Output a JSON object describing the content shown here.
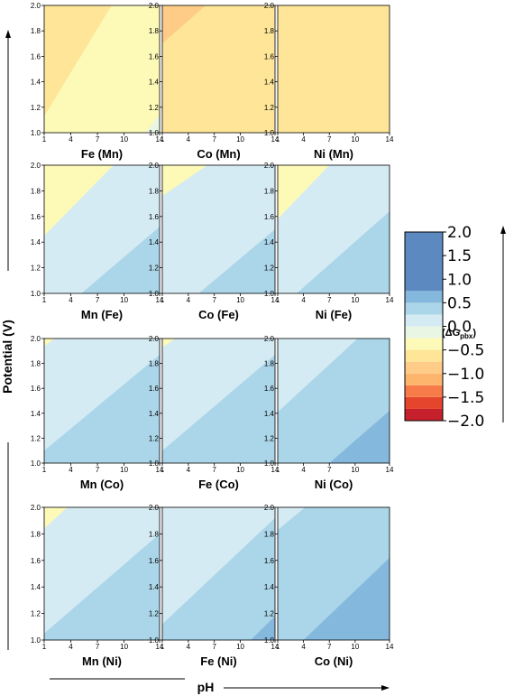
{
  "figure": {
    "ylabel": "Potential (V)",
    "xlabel": "pH",
    "colorbar": {
      "label": "(ΔG",
      "label_sub": "pbx",
      "label_end": ")",
      "ticks": [
        "2.0",
        "1.5",
        "1.0",
        "0.5",
        "0.0",
        "−0.5",
        "−1.0",
        "−1.5",
        "−2.0"
      ],
      "levels": [
        -2.0,
        -1.75,
        -1.5,
        -1.25,
        -1.0,
        -0.75,
        -0.5,
        -0.25,
        0.0,
        0.25,
        0.5,
        0.75,
        2.0
      ],
      "colors": [
        "#c6202c",
        "#e5452d",
        "#f77b48",
        "#fdb46d",
        "#fecc86",
        "#fee598",
        "#fdf9b7",
        "#eaf6e4",
        "#d5ebf4",
        "#abd5e8",
        "#84b8dc",
        "#5d89c1",
        "#303f98"
      ]
    }
  },
  "chart_data": {
    "type": "heatmap",
    "description_axes": {
      "x": "pH",
      "y": "Potential (V)"
    },
    "x_ticks": [
      "1",
      "4",
      "7",
      "10",
      "14"
    ],
    "y_ticks": [
      "1.0",
      "1.2",
      "1.4",
      "1.6",
      "1.8",
      "2.0"
    ],
    "xlim": [
      1,
      14
    ],
    "ylim": [
      1.0,
      2.0
    ],
    "panels": [
      {
        "title": "Fe (Mn)",
        "boundaries": [
          {
            "x1": 1,
            "y1": 1.9,
            "x2": 3.5,
            "y2": 2.0,
            "value": -1.0
          },
          {
            "x1": 1,
            "y1": 1.13,
            "x2": 8.6,
            "y2": 2.0,
            "value": -0.75
          },
          {
            "x1": 12.4,
            "y1": 1.0,
            "x2": 14,
            "y2": 1.14,
            "value": -0.25
          }
        ],
        "base_value": -0.375
      },
      {
        "title": "Co (Mn)",
        "boundaries": [
          {
            "x1": 1,
            "y1": 1.7,
            "x2": 6.0,
            "y2": 2.0,
            "value": -1.0
          },
          {
            "x1": 4.9,
            "y1": 1.0,
            "x2": 14,
            "y2": 1.58,
            "value": -0.75
          }
        ],
        "base_value": -0.625
      },
      {
        "title": "Ni (Mn)",
        "boundaries": [
          {
            "x1": 1,
            "y1": 1.7,
            "x2": 6.0,
            "y2": 2.0,
            "value": -1.0
          },
          {
            "x1": 1,
            "y1": 1.0,
            "x2": 14,
            "y2": 1.9,
            "value": -0.75
          }
        ],
        "base_value": -0.625
      },
      {
        "title": "Mn (Fe)",
        "boundaries": [
          {
            "x1": 1,
            "y1": 1.82,
            "x2": 3.0,
            "y2": 2.0,
            "value": -0.75
          },
          {
            "x1": 1,
            "y1": 1.45,
            "x2": 8.8,
            "y2": 2.0,
            "value": -0.375
          },
          {
            "x1": 5.2,
            "y1": 1.0,
            "x2": 14,
            "y2": 1.52,
            "value": 0.375
          }
        ],
        "base_value": 0.125
      },
      {
        "title": "Co (Fe)",
        "boundaries": [
          {
            "x1": 1,
            "y1": 1.76,
            "x2": 6.2,
            "y2": 2.0,
            "value": -0.375
          },
          {
            "x1": 5.2,
            "y1": 1.0,
            "x2": 14,
            "y2": 1.5,
            "value": 0.375
          }
        ],
        "base_value": 0.125
      },
      {
        "title": "Ni (Fe)",
        "boundaries": [
          {
            "x1": 1,
            "y1": 1.58,
            "x2": 7.0,
            "y2": 2.0,
            "value": -0.375
          },
          {
            "x1": 3.2,
            "y1": 1.0,
            "x2": 14,
            "y2": 1.64,
            "value": 0.375
          }
        ],
        "base_value": 0.125
      },
      {
        "title": "Mn (Co)",
        "boundaries": [
          {
            "x1": 1,
            "y1": 1.94,
            "x2": 2.2,
            "y2": 2.0,
            "value": -0.375
          },
          {
            "x1": 1,
            "y1": 1.1,
            "x2": 14,
            "y2": 1.87,
            "value": 0.375
          }
        ],
        "base_value": 0.125
      },
      {
        "title": "Fe (Co)",
        "boundaries": [
          {
            "x1": 1,
            "y1": 1.93,
            "x2": 2.5,
            "y2": 2.0,
            "value": -0.375
          },
          {
            "x1": 1,
            "y1": 1.1,
            "x2": 14,
            "y2": 1.87,
            "value": 0.375
          }
        ],
        "base_value": 0.125
      },
      {
        "title": "Ni (Co)",
        "boundaries": [
          {
            "x1": 1,
            "y1": 1.41,
            "x2": 10.3,
            "y2": 2.0,
            "value": 0.125
          },
          {
            "x1": 7.0,
            "y1": 1.0,
            "x2": 14,
            "y2": 1.42,
            "value": 0.625
          }
        ],
        "base_value": 0.375
      },
      {
        "title": "Mn (Ni)",
        "boundaries": [
          {
            "x1": 1,
            "y1": 1.84,
            "x2": 3.6,
            "y2": 2.0,
            "value": -0.375
          },
          {
            "x1": 1,
            "y1": 1.05,
            "x2": 14,
            "y2": 1.8,
            "value": 0.375
          }
        ],
        "base_value": 0.125
      },
      {
        "title": "Fe (Ni)",
        "boundaries": [
          {
            "x1": 1,
            "y1": 1.12,
            "x2": 14,
            "y2": 1.92,
            "value": 0.375
          },
          {
            "x1": 11.2,
            "y1": 1.0,
            "x2": 14,
            "y2": 1.18,
            "value": 0.625
          }
        ],
        "base_value": 0.125
      },
      {
        "title": "Co (Ni)",
        "boundaries": [
          {
            "x1": 1,
            "y1": 1.83,
            "x2": 4.2,
            "y2": 2.0,
            "value": 0.125
          },
          {
            "x1": 4.0,
            "y1": 1.0,
            "x2": 14,
            "y2": 1.62,
            "value": 0.625
          }
        ],
        "base_value": 0.375
      }
    ]
  }
}
